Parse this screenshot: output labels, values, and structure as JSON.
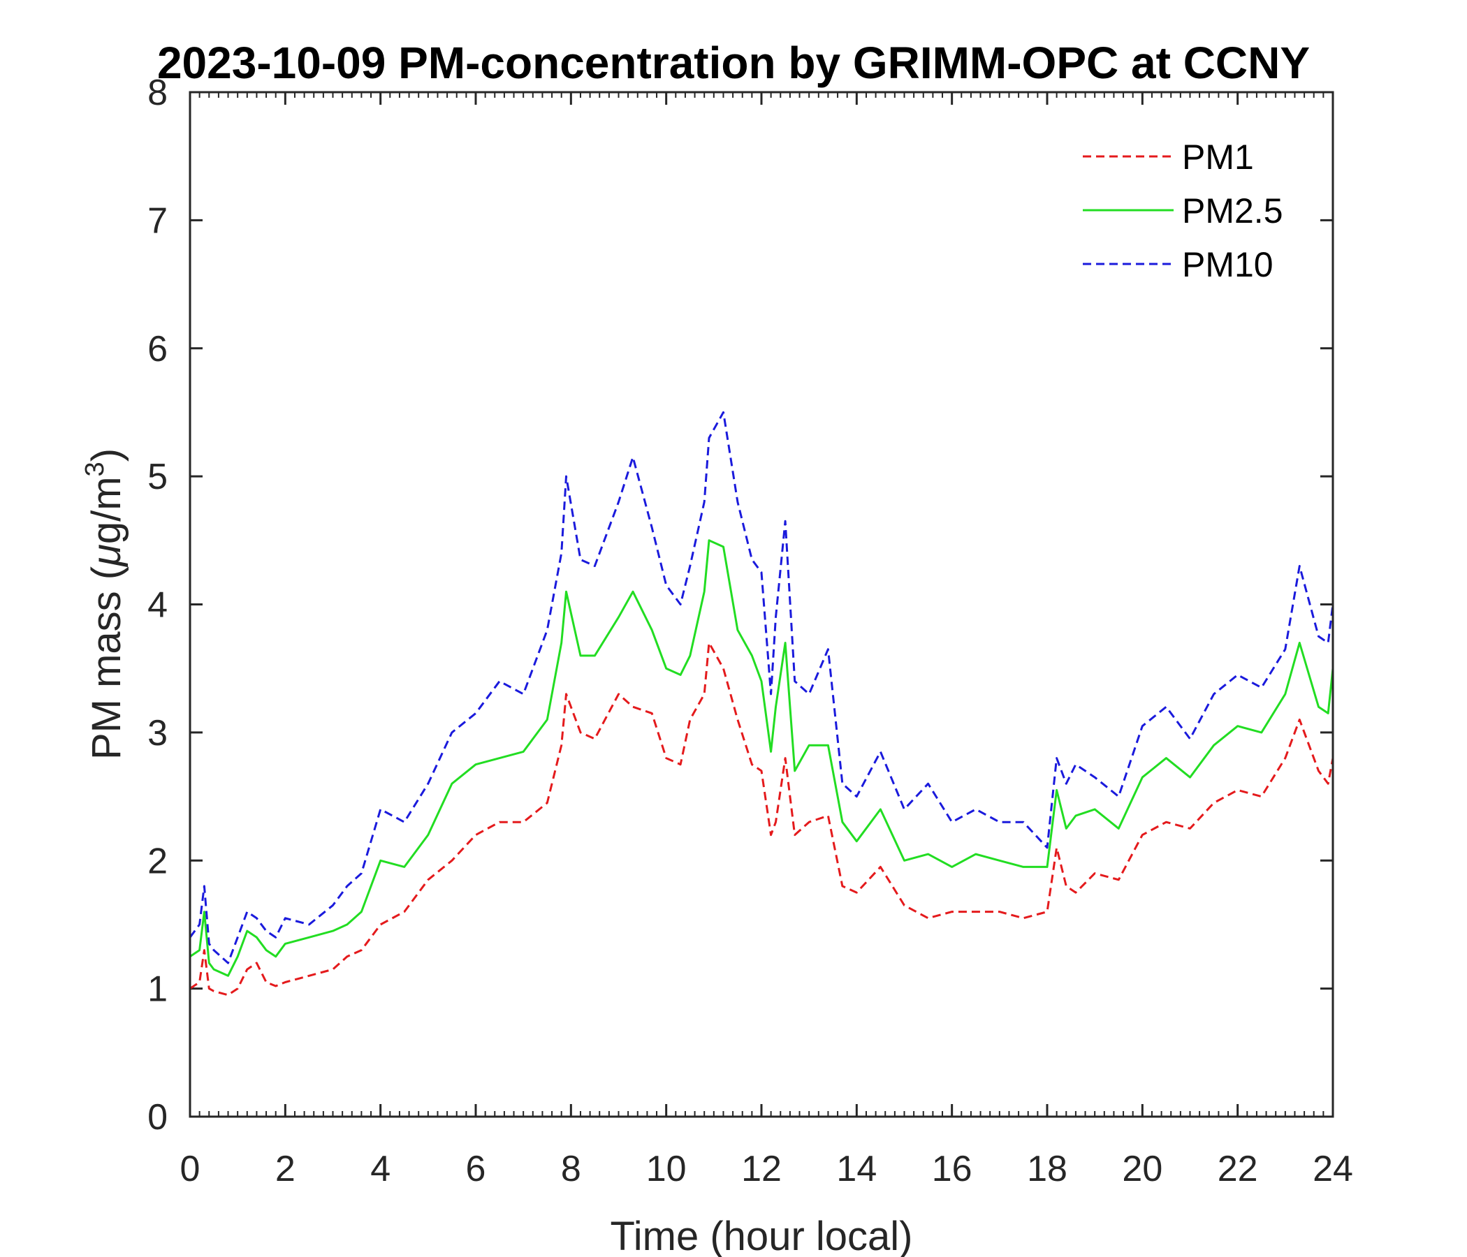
{
  "chart_data": {
    "type": "line",
    "title": "2023-10-09 PM-concentration by GRIMM-OPC at CCNY",
    "xlabel": "Time (hour local)",
    "ylabel_prefix": "PM mass (",
    "ylabel_mu": "μ",
    "ylabel_mid": "g/m",
    "ylabel_sup": "3",
    "ylabel_suffix": ")",
    "xlim": [
      0,
      24
    ],
    "ylim": [
      0,
      8
    ],
    "xticks": [
      0,
      2,
      4,
      6,
      8,
      10,
      12,
      14,
      16,
      18,
      20,
      22,
      24
    ],
    "yticks": [
      0,
      1,
      2,
      3,
      4,
      5,
      6,
      7,
      8
    ],
    "legend_position": "top-right",
    "series": [
      {
        "name": "PM1",
        "color": "#e41a1c",
        "style": "dashed",
        "x": [
          0,
          0.2,
          0.3,
          0.4,
          0.5,
          0.8,
          1.0,
          1.2,
          1.4,
          1.6,
          1.8,
          2.0,
          2.5,
          3.0,
          3.3,
          3.6,
          4.0,
          4.5,
          5.0,
          5.5,
          6.0,
          6.5,
          7.0,
          7.5,
          7.8,
          7.9,
          8.2,
          8.5,
          9.0,
          9.3,
          9.7,
          10.0,
          10.3,
          10.5,
          10.8,
          10.9,
          11.2,
          11.5,
          11.8,
          12.0,
          12.2,
          12.3,
          12.5,
          12.7,
          13.0,
          13.4,
          13.7,
          14.0,
          14.5,
          15.0,
          15.5,
          16.0,
          16.5,
          17.0,
          17.5,
          18.0,
          18.2,
          18.4,
          18.6,
          19.0,
          19.5,
          20.0,
          20.5,
          21.0,
          21.5,
          22.0,
          22.5,
          23.0,
          23.3,
          23.7,
          23.9,
          24.0
        ],
        "values": [
          1.0,
          1.05,
          1.3,
          1.0,
          0.98,
          0.95,
          1.0,
          1.15,
          1.2,
          1.05,
          1.02,
          1.05,
          1.1,
          1.15,
          1.25,
          1.3,
          1.5,
          1.6,
          1.85,
          2.0,
          2.2,
          2.3,
          2.3,
          2.45,
          2.9,
          3.3,
          3.0,
          2.95,
          3.3,
          3.2,
          3.15,
          2.8,
          2.75,
          3.1,
          3.3,
          3.7,
          3.5,
          3.1,
          2.75,
          2.7,
          2.2,
          2.3,
          2.8,
          2.2,
          2.3,
          2.35,
          1.8,
          1.75,
          1.95,
          1.65,
          1.55,
          1.6,
          1.6,
          1.6,
          1.55,
          1.6,
          2.1,
          1.8,
          1.75,
          1.9,
          1.85,
          2.2,
          2.3,
          2.25,
          2.45,
          2.55,
          2.5,
          2.8,
          3.1,
          2.7,
          2.6,
          2.8
        ]
      },
      {
        "name": "PM2.5",
        "color": "#22dd22",
        "style": "solid",
        "x": [
          0,
          0.2,
          0.3,
          0.4,
          0.5,
          0.8,
          1.0,
          1.2,
          1.4,
          1.6,
          1.8,
          2.0,
          2.5,
          3.0,
          3.3,
          3.6,
          4.0,
          4.5,
          5.0,
          5.5,
          6.0,
          6.5,
          7.0,
          7.5,
          7.8,
          7.9,
          8.2,
          8.5,
          9.0,
          9.3,
          9.7,
          10.0,
          10.3,
          10.5,
          10.8,
          10.9,
          11.2,
          11.5,
          11.8,
          12.0,
          12.2,
          12.3,
          12.5,
          12.7,
          13.0,
          13.4,
          13.7,
          14.0,
          14.5,
          15.0,
          15.5,
          16.0,
          16.5,
          17.0,
          17.5,
          18.0,
          18.2,
          18.4,
          18.6,
          19.0,
          19.5,
          20.0,
          20.5,
          21.0,
          21.5,
          22.0,
          22.5,
          23.0,
          23.3,
          23.7,
          23.9,
          24.0
        ],
        "values": [
          1.25,
          1.3,
          1.6,
          1.2,
          1.15,
          1.1,
          1.25,
          1.45,
          1.4,
          1.3,
          1.25,
          1.35,
          1.4,
          1.45,
          1.5,
          1.6,
          2.0,
          1.95,
          2.2,
          2.6,
          2.75,
          2.8,
          2.85,
          3.1,
          3.7,
          4.1,
          3.6,
          3.6,
          3.9,
          4.1,
          3.8,
          3.5,
          3.45,
          3.6,
          4.1,
          4.5,
          4.45,
          3.8,
          3.6,
          3.4,
          2.85,
          3.2,
          3.7,
          2.7,
          2.9,
          2.9,
          2.3,
          2.15,
          2.4,
          2.0,
          2.05,
          1.95,
          2.05,
          2.0,
          1.95,
          1.95,
          2.55,
          2.25,
          2.35,
          2.4,
          2.25,
          2.65,
          2.8,
          2.65,
          2.9,
          3.05,
          3.0,
          3.3,
          3.7,
          3.2,
          3.15,
          3.5
        ]
      },
      {
        "name": "PM10",
        "color": "#1a1adc",
        "style": "dashed",
        "x": [
          0,
          0.2,
          0.3,
          0.4,
          0.5,
          0.8,
          1.0,
          1.2,
          1.4,
          1.6,
          1.8,
          2.0,
          2.5,
          3.0,
          3.3,
          3.6,
          4.0,
          4.5,
          5.0,
          5.5,
          6.0,
          6.5,
          7.0,
          7.5,
          7.8,
          7.9,
          8.2,
          8.5,
          9.0,
          9.3,
          9.7,
          10.0,
          10.3,
          10.5,
          10.8,
          10.9,
          11.2,
          11.5,
          11.8,
          12.0,
          12.2,
          12.3,
          12.5,
          12.7,
          13.0,
          13.4,
          13.7,
          14.0,
          14.5,
          15.0,
          15.5,
          16.0,
          16.5,
          17.0,
          17.5,
          18.0,
          18.2,
          18.4,
          18.6,
          19.0,
          19.5,
          20.0,
          20.5,
          21.0,
          21.5,
          22.0,
          22.5,
          23.0,
          23.3,
          23.7,
          23.9,
          24.0
        ],
        "values": [
          1.4,
          1.5,
          1.8,
          1.35,
          1.3,
          1.2,
          1.4,
          1.6,
          1.55,
          1.45,
          1.4,
          1.55,
          1.5,
          1.65,
          1.8,
          1.9,
          2.4,
          2.3,
          2.6,
          3.0,
          3.15,
          3.4,
          3.3,
          3.8,
          4.4,
          5.0,
          4.35,
          4.3,
          4.8,
          5.15,
          4.6,
          4.15,
          4.0,
          4.3,
          4.8,
          5.3,
          5.5,
          4.8,
          4.35,
          4.25,
          3.3,
          3.9,
          4.65,
          3.4,
          3.3,
          3.65,
          2.6,
          2.5,
          2.85,
          2.4,
          2.6,
          2.3,
          2.4,
          2.3,
          2.3,
          2.1,
          2.8,
          2.6,
          2.75,
          2.65,
          2.5,
          3.05,
          3.2,
          2.95,
          3.3,
          3.45,
          3.35,
          3.65,
          4.3,
          3.75,
          3.7,
          4.0
        ]
      }
    ]
  }
}
